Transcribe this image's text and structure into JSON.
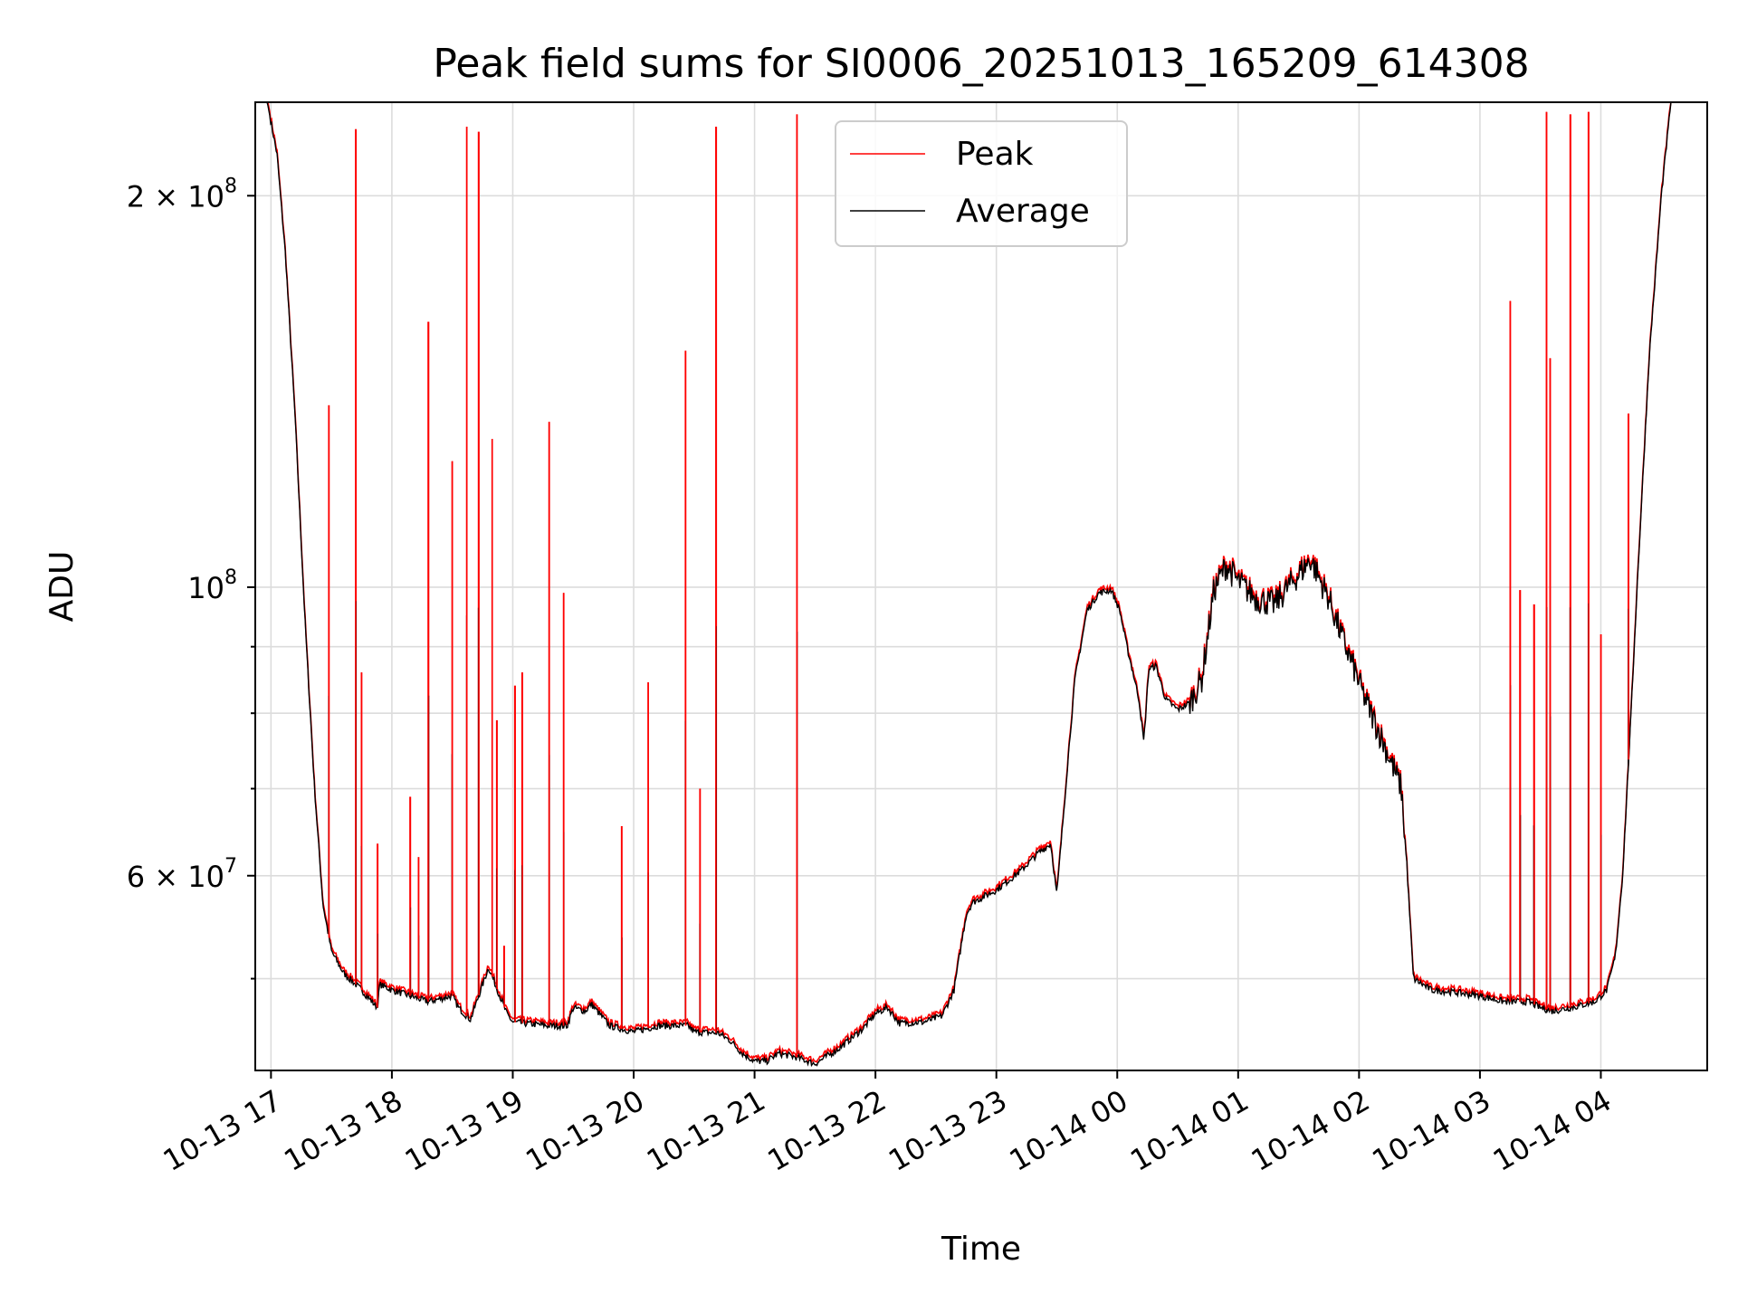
{
  "chart_data": {
    "type": "line",
    "title": "Peak field sums for SI0006_20251013_165209_614308",
    "xlabel": "Time",
    "ylabel": "ADU",
    "yscale": "log",
    "grid": true,
    "legend_position": "upper-center",
    "x_unit": "hours since 2025-10-13 17:00",
    "xlim": [
      -0.13,
      11.88
    ],
    "ylim": [
      42500000,
      236000000
    ],
    "x_ticks": [
      {
        "value": 0,
        "label": "10-13 17"
      },
      {
        "value": 1,
        "label": "10-13 18"
      },
      {
        "value": 2,
        "label": "10-13 19"
      },
      {
        "value": 3,
        "label": "10-13 20"
      },
      {
        "value": 4,
        "label": "10-13 21"
      },
      {
        "value": 5,
        "label": "10-13 22"
      },
      {
        "value": 6,
        "label": "10-13 23"
      },
      {
        "value": 7,
        "label": "10-14 00"
      },
      {
        "value": 8,
        "label": "10-14 01"
      },
      {
        "value": 9,
        "label": "10-14 02"
      },
      {
        "value": 10,
        "label": "10-14 03"
      },
      {
        "value": 11,
        "label": "10-14 04"
      }
    ],
    "y_major_ticks": [
      {
        "value": 60000000,
        "mantissa": "6",
        "exponent": "7"
      },
      {
        "value": 100000000,
        "mantissa": "",
        "exponent": "8"
      },
      {
        "value": 200000000,
        "mantissa": "2",
        "exponent": "8"
      }
    ],
    "y_minor_ticks": [
      50000000,
      70000000,
      80000000,
      90000000
    ],
    "series": [
      {
        "name": "Average",
        "color": "#000000",
        "points": [
          [
            -0.13,
            236000000
          ],
          [
            -0.03,
            236000000
          ],
          [
            0.05,
            215000000
          ],
          [
            0.12,
            180000000
          ],
          [
            0.2,
            135000000
          ],
          [
            0.28,
            95000000
          ],
          [
            0.36,
            70000000
          ],
          [
            0.43,
            57000000
          ],
          [
            0.5,
            52500000
          ],
          [
            0.6,
            50500000
          ],
          [
            0.75,
            49000000
          ],
          [
            0.88,
            47500000
          ],
          [
            0.9,
            49500000
          ],
          [
            1.0,
            49000000
          ],
          [
            1.15,
            48500000
          ],
          [
            1.3,
            48000000
          ],
          [
            1.5,
            48500000
          ],
          [
            1.55,
            47500000
          ],
          [
            1.65,
            46500000
          ],
          [
            1.8,
            51000000
          ],
          [
            1.95,
            47000000
          ],
          [
            2.0,
            46300000
          ],
          [
            2.3,
            46000000
          ],
          [
            2.45,
            46000000
          ],
          [
            2.5,
            47500000
          ],
          [
            2.6,
            47200000
          ],
          [
            2.65,
            47800000
          ],
          [
            2.8,
            46000000
          ],
          [
            3.0,
            45500000
          ],
          [
            3.2,
            46000000
          ],
          [
            3.45,
            46000000
          ],
          [
            3.5,
            45500000
          ],
          [
            3.7,
            45400000
          ],
          [
            3.8,
            44800000
          ],
          [
            3.9,
            43800000
          ],
          [
            4.0,
            43200000
          ],
          [
            4.1,
            43200000
          ],
          [
            4.2,
            43800000
          ],
          [
            4.35,
            43500000
          ],
          [
            4.5,
            43000000
          ],
          [
            4.7,
            44200000
          ],
          [
            4.9,
            45800000
          ],
          [
            5.0,
            47000000
          ],
          [
            5.1,
            47500000
          ],
          [
            5.2,
            46200000
          ],
          [
            5.4,
            46300000
          ],
          [
            5.55,
            46800000
          ],
          [
            5.65,
            49000000
          ],
          [
            5.75,
            56000000
          ],
          [
            5.8,
            57200000
          ],
          [
            6.0,
            58500000
          ],
          [
            6.2,
            60500000
          ],
          [
            6.35,
            62500000
          ],
          [
            6.45,
            63500000
          ],
          [
            6.5,
            58000000
          ],
          [
            6.6,
            75000000
          ],
          [
            6.65,
            85000000
          ],
          [
            6.75,
            96000000
          ],
          [
            6.85,
            99000000
          ],
          [
            6.95,
            99500000
          ],
          [
            7.02,
            96000000
          ],
          [
            7.08,
            90000000
          ],
          [
            7.13,
            86000000
          ],
          [
            7.18,
            82000000
          ],
          [
            7.22,
            76000000
          ],
          [
            7.26,
            86500000
          ],
          [
            7.32,
            87000000
          ],
          [
            7.4,
            82000000
          ],
          [
            7.5,
            80500000
          ],
          [
            7.6,
            81500000
          ],
          [
            7.7,
            85000000
          ],
          [
            7.8,
            99500000
          ],
          [
            7.9,
            104000000
          ],
          [
            8.0,
            101000000
          ],
          [
            8.15,
            98000000
          ],
          [
            8.3,
            97000000
          ],
          [
            8.45,
            101000000
          ],
          [
            8.6,
            105000000
          ],
          [
            8.75,
            98000000
          ],
          [
            8.85,
            92000000
          ],
          [
            8.95,
            87000000
          ],
          [
            9.05,
            82000000
          ],
          [
            9.15,
            78000000
          ],
          [
            9.25,
            74000000
          ],
          [
            9.3,
            72000000
          ],
          [
            9.35,
            70000000
          ],
          [
            9.4,
            60000000
          ],
          [
            9.45,
            50000000
          ],
          [
            9.6,
            49000000
          ],
          [
            9.8,
            48800000
          ],
          [
            10.0,
            48500000
          ],
          [
            10.2,
            48000000
          ],
          [
            10.4,
            48000000
          ],
          [
            10.5,
            47500000
          ],
          [
            10.6,
            47200000
          ],
          [
            10.8,
            47600000
          ],
          [
            10.95,
            48000000
          ],
          [
            11.05,
            49000000
          ],
          [
            11.12,
            52000000
          ],
          [
            11.18,
            60000000
          ],
          [
            11.25,
            80000000
          ],
          [
            11.3,
            100000000
          ],
          [
            11.4,
            150000000
          ],
          [
            11.5,
            200000000
          ],
          [
            11.58,
            236000000
          ],
          [
            11.88,
            236000000
          ]
        ]
      },
      {
        "name": "Peak",
        "color": "#ff0000",
        "spikes": [
          [
            0.48,
            138000000
          ],
          [
            0.7,
            225000000
          ],
          [
            0.75,
            86000000
          ],
          [
            0.88,
            63500000
          ],
          [
            1.15,
            69000000
          ],
          [
            1.22,
            62000000
          ],
          [
            1.3,
            160000000
          ],
          [
            1.5,
            125000000
          ],
          [
            1.62,
            226000000
          ],
          [
            1.72,
            224000000
          ],
          [
            1.83,
            130000000
          ],
          [
            1.87,
            79000000
          ],
          [
            1.93,
            53000000
          ],
          [
            2.02,
            84000000
          ],
          [
            2.08,
            86000000
          ],
          [
            2.3,
            134000000
          ],
          [
            2.42,
            99000000
          ],
          [
            2.9,
            65500000
          ],
          [
            3.12,
            84500000
          ],
          [
            3.43,
            152000000
          ],
          [
            3.55,
            70000000
          ],
          [
            3.68,
            226000000
          ],
          [
            4.35,
            231000000
          ],
          [
            10.25,
            166000000
          ],
          [
            10.33,
            99500000
          ],
          [
            10.45,
            97000000
          ],
          [
            10.55,
            232000000
          ],
          [
            10.58,
            150000000
          ],
          [
            10.75,
            231000000
          ],
          [
            10.9,
            232000000
          ],
          [
            11.0,
            92000000
          ],
          [
            11.23,
            136000000
          ]
        ]
      }
    ]
  }
}
